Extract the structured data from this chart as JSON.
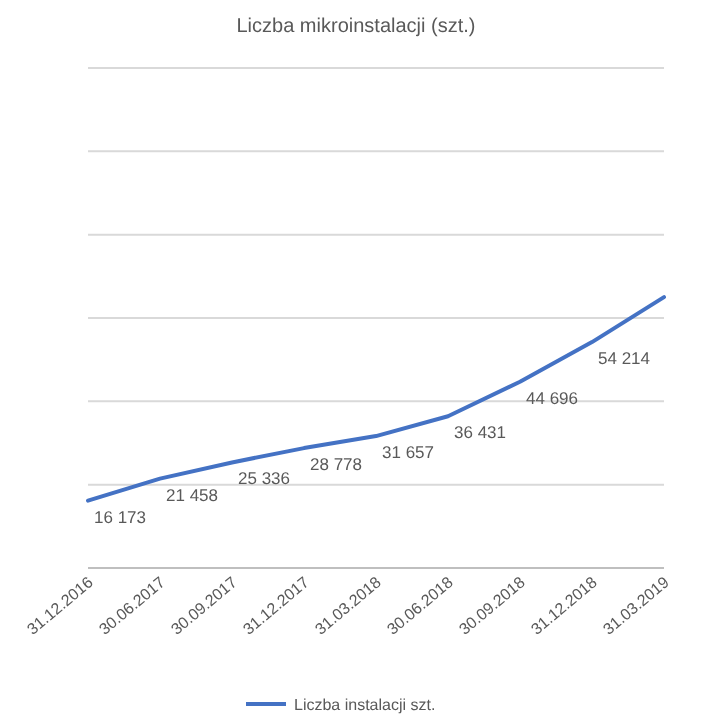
{
  "chart_data": {
    "type": "line",
    "title": "Liczba mikroinstalacji (szt.)",
    "categories": [
      "31.12.2016",
      "30.06.2017",
      "30.09.2017",
      "31.12.2017",
      "31.03.2018",
      "30.06.2018",
      "30.09.2018",
      "31.12.2018",
      "31.03.2019"
    ],
    "series": [
      {
        "name": "Liczba instalacji szt.",
        "color": "#4472c4",
        "values": [
          16173,
          21458,
          25336,
          28778,
          31657,
          36431,
          44696,
          54214,
          65000
        ],
        "value_labels": [
          "16 173",
          "21 458",
          "25 336",
          "28 778",
          "31 657",
          "36 431",
          "44 696",
          "54 214",
          null
        ]
      }
    ],
    "ylim": [
      0,
      120000
    ],
    "yticks": [
      {
        "value": 0,
        "label": null
      },
      {
        "value": 20000,
        "label": null
      },
      {
        "value": 40000,
        "label": null
      },
      {
        "value": 60000,
        "label": null
      },
      {
        "value": 80000,
        "label": null
      },
      {
        "value": 100000,
        "label": null
      },
      {
        "value": 120000,
        "label": null
      }
    ],
    "tick_labels": "x",
    "grid": "y",
    "legend": "bottom",
    "marker": "none",
    "line_style": "solid"
  }
}
